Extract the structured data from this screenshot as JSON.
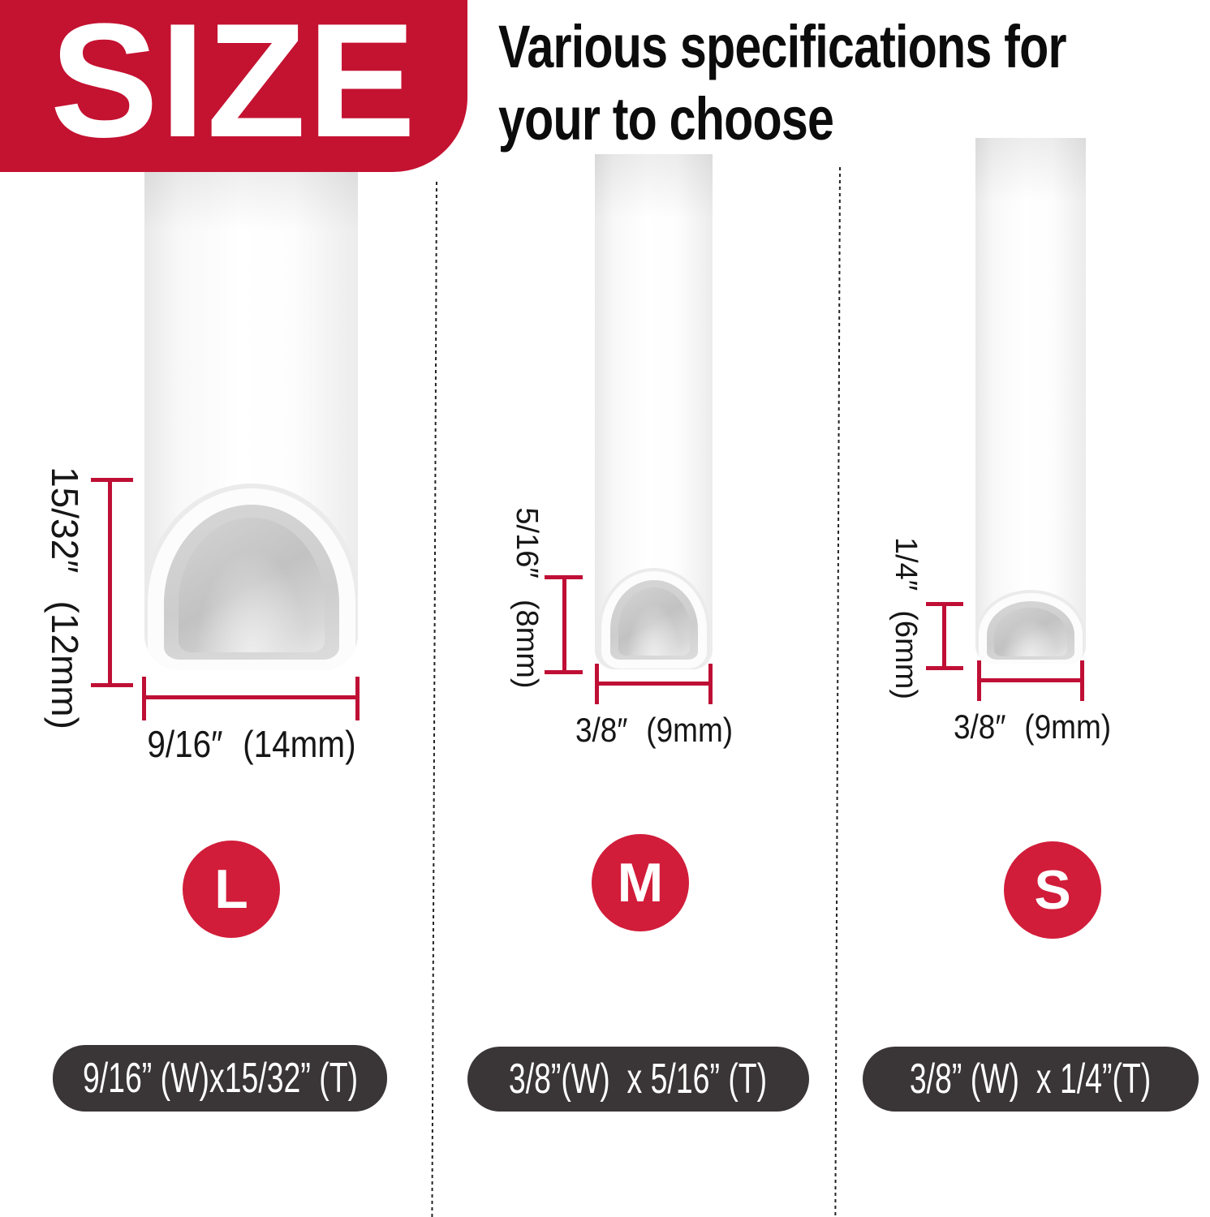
{
  "header": {
    "badge_label": "SIZE",
    "title_line1": "Various specifications for",
    "title_line2": "your to choose"
  },
  "colors": {
    "banner_red": "#c41231",
    "accent_red": "#d11d3a",
    "dimension_red": "#bf0f35",
    "pill_bg": "#3a3536"
  },
  "sizes": [
    {
      "label": "L",
      "thickness_in": "15/32″",
      "thickness_mm": "(12mm)",
      "width_in": "9/16″",
      "width_mm": "(14mm)",
      "spec": "9/16” (W)x15/32” (T)"
    },
    {
      "label": "M",
      "thickness_in": "5/16″",
      "thickness_mm": "(8mm)",
      "width_in": "3/8″",
      "width_mm": "(9mm)",
      "spec": "3/8”(W)  x 5/16” (T)"
    },
    {
      "label": "S",
      "thickness_in": "1/4″",
      "thickness_mm": "(6mm)",
      "width_in": "3/8″",
      "width_mm": "(9mm)",
      "spec": "3/8” (W)  x 1/4”(T)"
    }
  ]
}
